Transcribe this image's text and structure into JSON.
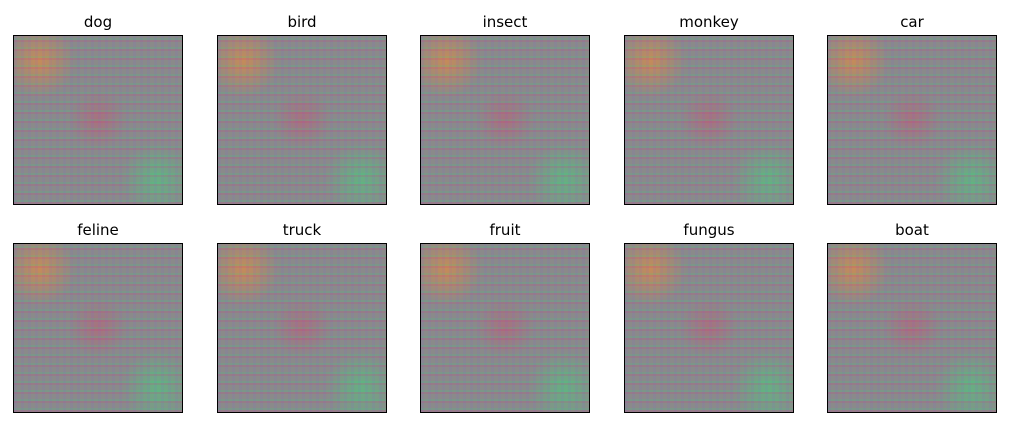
{
  "panels": [
    {
      "title": "dog"
    },
    {
      "title": "bird"
    },
    {
      "title": "insect"
    },
    {
      "title": "monkey"
    },
    {
      "title": "car"
    },
    {
      "title": "feline"
    },
    {
      "title": "truck"
    },
    {
      "title": "fruit"
    },
    {
      "title": "fungus"
    },
    {
      "title": "boat"
    }
  ]
}
